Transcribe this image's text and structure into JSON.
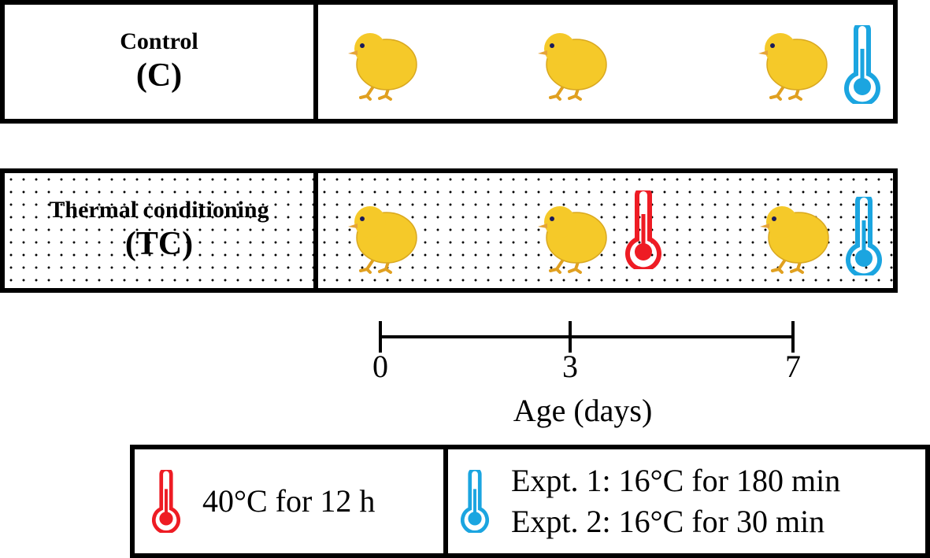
{
  "groups": [
    {
      "name": "Control",
      "abbr": "(C)"
    },
    {
      "name": "Thermal conditioning",
      "abbr": "(TC)"
    }
  ],
  "timeline": {
    "ticks": [
      "0",
      "3",
      "7"
    ],
    "axis_title": "Age (days)"
  },
  "legend": {
    "heat": {
      "icon": "red-thermometer-icon",
      "color": "#ee1c24",
      "text": "40°C for 12 h"
    },
    "cold": {
      "icon": "blue-thermometer-icon",
      "color": "#1ba5e0",
      "lines": [
        "Expt. 1: 16°C for 180 min",
        "Expt. 2: 16°C for 30 min"
      ]
    }
  },
  "colors": {
    "chick": "#f5c929",
    "heat": "#ee1c24",
    "cold": "#1ba5e0"
  }
}
